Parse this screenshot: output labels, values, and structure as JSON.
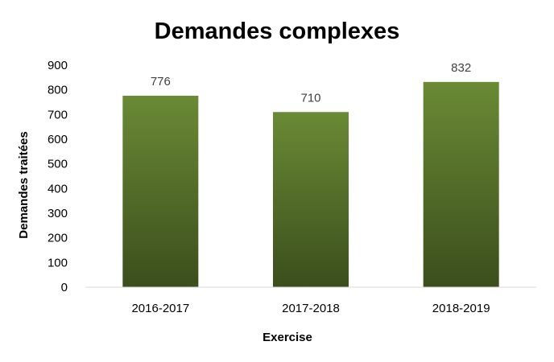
{
  "chart_data": {
    "type": "bar",
    "title": "Demandes complexes",
    "xlabel": "Exercise",
    "ylabel": "Demandes traitées",
    "categories": [
      "2016-2017",
      "2017-2018",
      "2018-2019"
    ],
    "values": [
      776,
      710,
      832
    ],
    "data_labels": [
      "776",
      "710",
      "832"
    ],
    "ylim": [
      0,
      900
    ],
    "yticks": [
      0,
      100,
      200,
      300,
      400,
      500,
      600,
      700,
      800,
      900
    ],
    "grid": false,
    "legend": "none",
    "bar_color_top": "#6a8a35",
    "bar_color_bottom": "#3b4e1c"
  }
}
